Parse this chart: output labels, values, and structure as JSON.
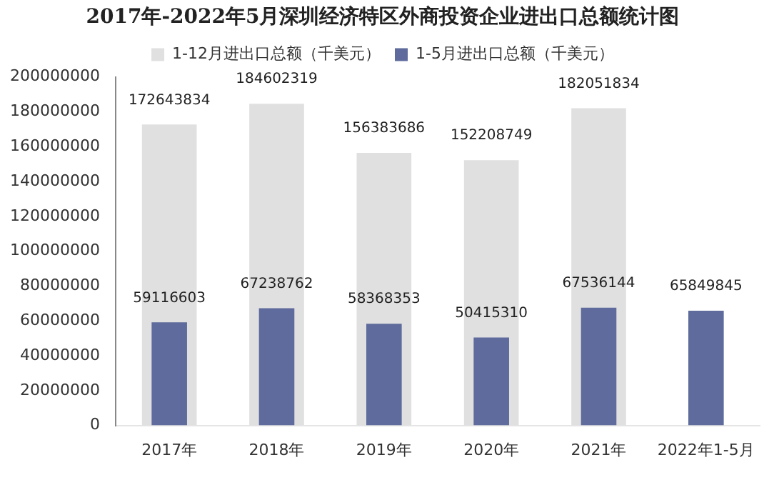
{
  "chart_data": {
    "type": "bar",
    "title": "2017年-2022年5月深圳经济特区外商投资企业进出口总额统计图",
    "categories": [
      "2017年",
      "2018年",
      "2019年",
      "2020年",
      "2021年",
      "2022年1-5月"
    ],
    "series": [
      {
        "name": "1-12月进出口总额（千美元）",
        "color": "#e0e0e0",
        "values": [
          172643834,
          184602319,
          156383686,
          152208749,
          182051834,
          null
        ]
      },
      {
        "name": "1-5月进出口总额（千美元）",
        "color": "#5e6b9c",
        "values": [
          59116603,
          67238762,
          58368353,
          50415310,
          67536144,
          65849845
        ]
      }
    ],
    "ylim": [
      0,
      200000000
    ],
    "yticks": [
      0,
      20000000,
      40000000,
      60000000,
      80000000,
      100000000,
      120000000,
      140000000,
      160000000,
      180000000,
      200000000
    ],
    "grid": false,
    "legend": "top",
    "data_labels": true
  }
}
